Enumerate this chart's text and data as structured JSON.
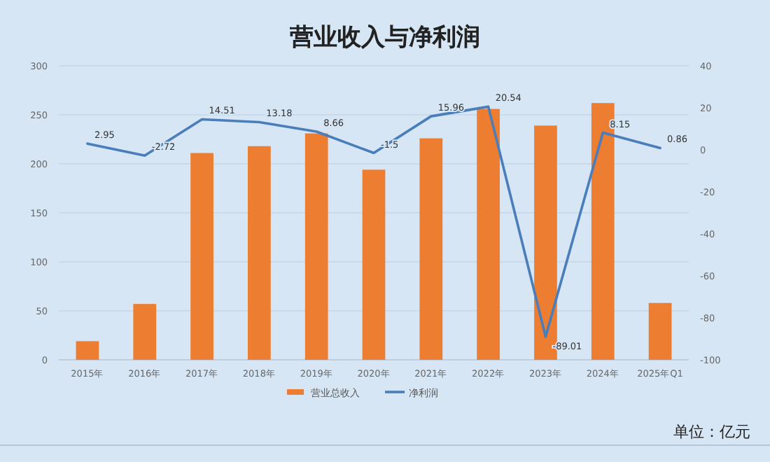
{
  "chart_data": {
    "type": "bar",
    "title": "营业收入与净利润",
    "categories": [
      "2015年",
      "2016年",
      "2017年",
      "2018年",
      "2019年",
      "2020年",
      "2021年",
      "2022年",
      "2023年",
      "2024年",
      "2025年Q1"
    ],
    "series": [
      {
        "name": "营业总收入",
        "color": "#ed7d31",
        "values": [
          19,
          57,
          211,
          218,
          231,
          194,
          226,
          256,
          239,
          262,
          58
        ]
      },
      {
        "name": "净利润",
        "type": "line",
        "axis": "y2",
        "color": "#4a7ebb",
        "values": [
          2.95,
          -2.72,
          14.51,
          13.18,
          8.66,
          -1.5,
          15.96,
          20.54,
          -89.01,
          8.15,
          0.86
        ],
        "data_labels": true
      }
    ],
    "ylim": [
      0,
      300
    ],
    "yticks": [
      0,
      50,
      100,
      150,
      200,
      250,
      300
    ],
    "y2lim": [
      -100,
      40
    ],
    "y2ticks": [
      -100,
      -80,
      -60,
      -40,
      -20,
      0,
      20,
      40
    ],
    "grid": "y",
    "legend": "bottom",
    "marker": "none",
    "annotations": [
      "单位：亿元"
    ]
  }
}
